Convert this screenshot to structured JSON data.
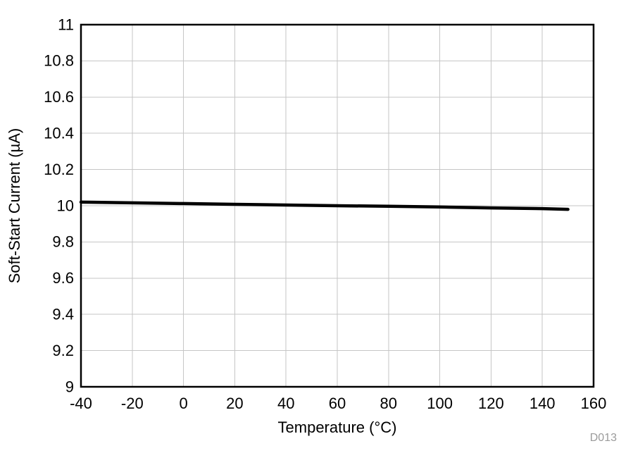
{
  "chart_data": {
    "type": "line",
    "title": "",
    "xlabel": "Temperature (°C)",
    "ylabel": "Soft-Start Current (µA)",
    "xlim": [
      -40,
      160
    ],
    "ylim": [
      9,
      11
    ],
    "xticks": [
      -40,
      -20,
      0,
      20,
      40,
      60,
      80,
      100,
      120,
      140,
      160
    ],
    "yticks": [
      9,
      9.2,
      9.4,
      9.6,
      9.8,
      10,
      10.2,
      10.4,
      10.6,
      10.8,
      11
    ],
    "grid": true,
    "legend": "none",
    "annotation": "D013",
    "grid_color": "#c6c6c6",
    "series": [
      {
        "name": "Soft-Start Current",
        "color": "#000000",
        "x": [
          -40,
          -20,
          0,
          20,
          40,
          60,
          80,
          100,
          120,
          140,
          150
        ],
        "y": [
          10.02,
          10.016,
          10.012,
          10.008,
          10.004,
          10.0,
          9.997,
          9.993,
          9.988,
          9.984,
          9.98
        ]
      }
    ]
  }
}
